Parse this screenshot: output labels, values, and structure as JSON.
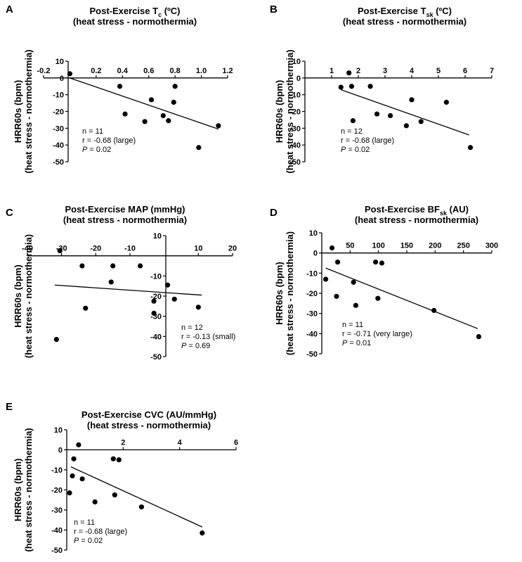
{
  "chart_data": [
    {
      "id": "A",
      "type": "scatter",
      "title_prefix": "Post-Exercise T",
      "title_sub": "c",
      "title_suffix": " (ºC)",
      "title_line2": "(heat stress - normothermia)",
      "ylabel_line1": "HRR60s (bpm)",
      "ylabel_line2": "(heat stress - normothermia)",
      "xlim": [
        -0.2,
        1.2
      ],
      "ylim": [
        -50,
        10
      ],
      "xticks": [
        -0.2,
        0.2,
        0.4,
        0.6,
        0.8,
        1.0,
        1.2
      ],
      "xtick_labels": [
        "-0.2",
        "0.2",
        "0.4",
        "0.6",
        "0.8",
        "1.0",
        "1.2"
      ],
      "yticks": [
        10,
        0,
        -10,
        -20,
        -30,
        -40,
        -50
      ],
      "ytick_labels": [
        "10",
        "0",
        "-10",
        "-20",
        "-30",
        "-40",
        "-50"
      ],
      "points": [
        [
          0.0,
          2.5
        ],
        [
          0.38,
          -5
        ],
        [
          0.42,
          -21.5
        ],
        [
          0.57,
          -26
        ],
        [
          0.62,
          -13
        ],
        [
          0.71,
          -22.5
        ],
        [
          0.75,
          -25.5
        ],
        [
          0.79,
          -14.5
        ],
        [
          0.8,
          -5
        ],
        [
          0.98,
          -41.5
        ],
        [
          1.13,
          -28.5
        ]
      ],
      "fit": [
        [
          0.0,
          0.0
        ],
        [
          1.13,
          -30.5
        ]
      ],
      "stats": [
        "n = 11",
        "r = -0.68 (large)",
        "= 0.02"
      ],
      "p_label": "P"
    },
    {
      "id": "B",
      "type": "scatter",
      "title_prefix": "Post-Exercise T",
      "title_sub": "sk",
      "title_suffix": " (ºC)",
      "title_line2": "(heat stress - normothermia)",
      "ylabel_line1": "HRR60s (bpm)",
      "ylabel_line2": "(heat stress - normothermia)",
      "xlim": [
        0,
        7
      ],
      "ylim": [
        -50,
        10
      ],
      "xticks": [
        1,
        2,
        3,
        4,
        5,
        6,
        7
      ],
      "xtick_labels": [
        "1",
        "2",
        "3",
        "4",
        "5",
        "6",
        "7"
      ],
      "yticks": [
        10,
        0,
        -10,
        -20,
        -30,
        -40,
        -50
      ],
      "ytick_labels": [
        "10",
        "0",
        "-10",
        "-20",
        "-30",
        "-40",
        "-50"
      ],
      "points": [
        [
          1.35,
          -5.5
        ],
        [
          1.65,
          3
        ],
        [
          1.75,
          -5
        ],
        [
          1.8,
          -25.5
        ],
        [
          2.45,
          -5
        ],
        [
          2.7,
          -21.5
        ],
        [
          3.2,
          -22.5
        ],
        [
          3.8,
          -28.5
        ],
        [
          4.0,
          -13
        ],
        [
          4.35,
          -26
        ],
        [
          5.3,
          -14.5
        ],
        [
          6.2,
          -41.5
        ]
      ],
      "fit": [
        [
          1.35,
          -7
        ],
        [
          6.15,
          -34
        ]
      ],
      "stats": [
        "n = 12",
        "r = -0.68 (large)",
        "= 0.02"
      ],
      "p_label": "P"
    },
    {
      "id": "C",
      "type": "scatter",
      "title_prefix": "Post-Exercise MAP (mmHg)",
      "title_sub": "",
      "title_suffix": "",
      "title_line2": "(heat stress - normothermia)",
      "ylabel_line1": "HRR60s (bpm)",
      "ylabel_line2": "(heat stress - normothermia)",
      "xlim": [
        -40,
        20
      ],
      "ylim": [
        -50,
        10
      ],
      "xticks": [
        -40,
        -30,
        -20,
        -10,
        10,
        20
      ],
      "xtick_labels": [
        "-40",
        "-30",
        "-20",
        "-10",
        "10",
        "20"
      ],
      "yticks": [
        10,
        -10,
        -20,
        -30,
        -40,
        -50
      ],
      "ytick_labels": [
        "10",
        "-10",
        "-20",
        "-30",
        "-40",
        "-50"
      ],
      "points": [
        [
          -30.5,
          2.5
        ],
        [
          -31.5,
          -41.5
        ],
        [
          -24,
          -5
        ],
        [
          -23,
          -26
        ],
        [
          -15,
          -5
        ],
        [
          -15.5,
          -13
        ],
        [
          -7,
          -5
        ],
        [
          -3,
          -22.5
        ],
        [
          -3,
          -28.5
        ],
        [
          1,
          -14.5
        ],
        [
          3,
          -21.5
        ],
        [
          10,
          -25.5
        ]
      ],
      "fit": [
        [
          -32,
          -14.5
        ],
        [
          11,
          -19.5
        ]
      ],
      "stats": [
        "n = 12",
        "r = -0.13 (small)",
        "= 0.69"
      ],
      "p_label": "P"
    },
    {
      "id": "D",
      "type": "scatter",
      "title_prefix": "Post-Exercise BF",
      "title_sub": "sk",
      "title_suffix": " (AU)",
      "title_line2": "(heat stress - normothermia)",
      "ylabel_line1": "HRR60s (bpm)",
      "ylabel_line2": "(heat stress - normothermia)",
      "xlim": [
        0,
        300
      ],
      "ylim": [
        -50,
        10
      ],
      "xticks": [
        50,
        100,
        150,
        200,
        250,
        300
      ],
      "xtick_labels": [
        "50",
        "100",
        "150",
        "200",
        "250",
        "300"
      ],
      "yticks": [
        10,
        0,
        -10,
        -20,
        -30,
        -40,
        -50
      ],
      "ytick_labels": [
        "10",
        "0",
        "-10",
        "-20",
        "-30",
        "-40",
        "-50"
      ],
      "points": [
        [
          7,
          -13
        ],
        [
          18,
          2.5
        ],
        [
          28,
          -4.5
        ],
        [
          26,
          -21.5
        ],
        [
          56,
          -14.5
        ],
        [
          60,
          -26
        ],
        [
          95,
          -4.5
        ],
        [
          99,
          -22.5
        ],
        [
          106,
          -5
        ],
        [
          198,
          -28.5
        ],
        [
          277,
          -41.5
        ]
      ],
      "fit": [
        [
          7,
          -7.5
        ],
        [
          275,
          -37.5
        ]
      ],
      "stats": [
        "n = 11",
        "r = -0.71 (very large)",
        "= 0.01"
      ],
      "p_label": "P"
    },
    {
      "id": "E",
      "type": "scatter",
      "title_prefix": "Post-Exercise CVC (AU/mmHg)",
      "title_sub": "",
      "title_suffix": "",
      "title_line2": "(heat stress - normothermia)",
      "ylabel_line1": "HRR60s (bpm)",
      "ylabel_line2": "(heat stress - normothermia)",
      "xlim": [
        0,
        6
      ],
      "ylim": [
        -50,
        10
      ],
      "xticks": [
        2,
        4,
        6
      ],
      "xtick_labels": [
        "2",
        "4",
        "6"
      ],
      "yticks": [
        10,
        0,
        -10,
        -20,
        -30,
        -40,
        -50
      ],
      "ytick_labels": [
        "10",
        "0",
        "-10",
        "-20",
        "-30",
        "-40",
        "-50"
      ],
      "points": [
        [
          0.1,
          -21.5
        ],
        [
          0.2,
          -13
        ],
        [
          0.25,
          -4.5
        ],
        [
          0.42,
          2.5
        ],
        [
          0.55,
          -14.5
        ],
        [
          1.0,
          -26
        ],
        [
          1.65,
          -4.5
        ],
        [
          1.85,
          -5
        ],
        [
          1.7,
          -22.5
        ],
        [
          2.65,
          -28.5
        ],
        [
          4.8,
          -41.5
        ]
      ],
      "fit": [
        [
          0.15,
          -8.5
        ],
        [
          4.8,
          -38.5
        ]
      ],
      "stats": [
        "n = 11",
        "r = -0.68 (large)",
        "= 0.02"
      ],
      "p_label": "P"
    }
  ]
}
